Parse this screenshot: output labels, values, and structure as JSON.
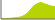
{
  "chart_data": {
    "type": "area",
    "x": [
      0,
      1,
      2,
      3,
      4,
      5,
      6,
      7,
      8,
      9,
      10,
      11,
      12,
      13,
      14,
      15,
      16,
      17,
      18,
      19,
      20,
      21,
      22,
      23,
      24,
      25,
      26,
      27
    ],
    "series": [
      {
        "color": "#b8d400",
        "values": [
          0.1,
          0.15,
          0.2,
          0.25,
          0.3,
          0.4,
          0.5,
          0.6,
          0.7,
          0.85,
          1.1,
          1.5,
          2.0,
          2.8,
          3.8,
          5.0,
          6.2,
          7.0,
          7.6,
          8.0,
          8.3,
          7.9,
          7.5,
          7.2,
          6.8,
          6.5,
          6.3,
          6.1
        ]
      }
    ],
    "xlim": [
      0,
      27
    ],
    "ylim": [
      0,
      9.5
    ],
    "tick_labels": false,
    "grid": false
  }
}
